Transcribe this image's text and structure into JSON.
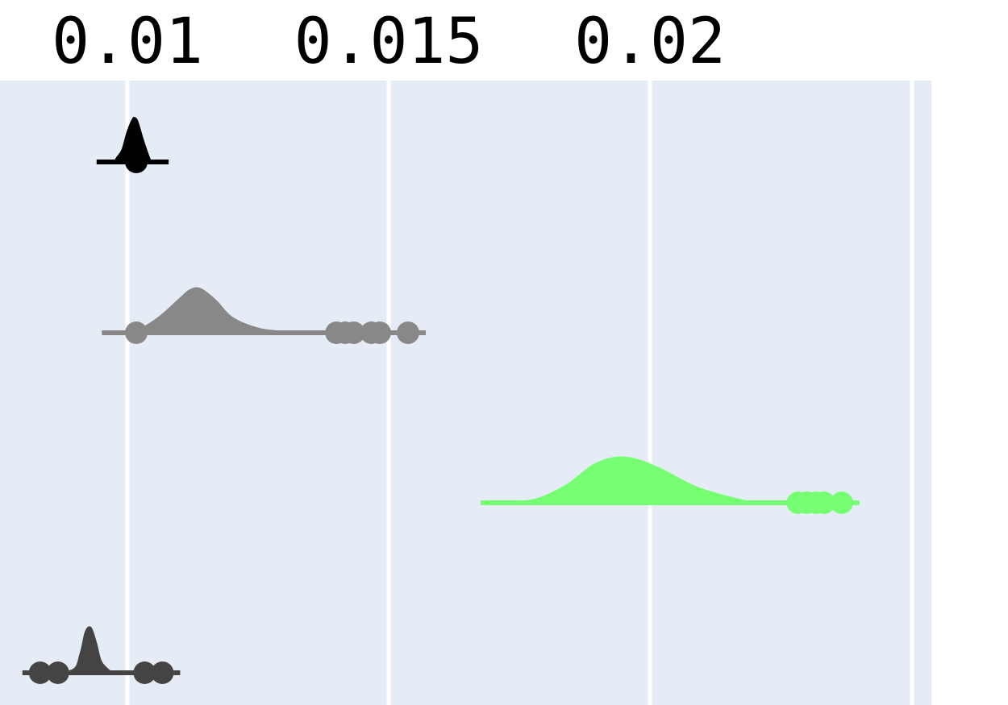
{
  "chart_data": {
    "type": "violin",
    "title": "",
    "xlabel": "",
    "ylabel": "",
    "x_axis_position": "top",
    "xlim": [
      0.0076,
      0.0231
    ],
    "x_ticks": [
      0.01,
      0.015,
      0.02
    ],
    "x_tick_labels": [
      "0.01",
      "0.015",
      "0.02"
    ],
    "grid": true,
    "background_color": "#e5ecf6",
    "legend": "none",
    "series": [
      {
        "color": "#000000",
        "density": [
          [
            0.00975,
            0.0
          ],
          [
            0.0098,
            0.08
          ],
          [
            0.0099,
            0.22
          ],
          [
            0.01,
            0.55
          ],
          [
            0.0101,
            0.78
          ],
          [
            0.01015,
            0.8
          ],
          [
            0.0102,
            0.72
          ],
          [
            0.0103,
            0.4
          ],
          [
            0.0104,
            0.12
          ],
          [
            0.01045,
            0.0
          ]
        ],
        "points": [
          0.01017
        ]
      },
      {
        "color": "#888888",
        "density": [
          [
            0.00985,
            0.0
          ],
          [
            0.0102,
            0.05
          ],
          [
            0.0106,
            0.28
          ],
          [
            0.011,
            0.62
          ],
          [
            0.0112,
            0.78
          ],
          [
            0.0114,
            0.8
          ],
          [
            0.0117,
            0.58
          ],
          [
            0.012,
            0.28
          ],
          [
            0.0125,
            0.08
          ],
          [
            0.013,
            0.02
          ],
          [
            0.01355,
            0.0
          ]
        ],
        "points": [
          0.01017,
          0.014,
          0.01417,
          0.01433,
          0.01467,
          0.01483,
          0.01537
        ]
      },
      {
        "color": "#76ff72",
        "density": [
          [
            0.0171,
            0.0
          ],
          [
            0.0178,
            0.06
          ],
          [
            0.0184,
            0.32
          ],
          [
            0.0189,
            0.68
          ],
          [
            0.0193,
            0.82
          ],
          [
            0.0197,
            0.8
          ],
          [
            0.0202,
            0.62
          ],
          [
            0.0209,
            0.28
          ],
          [
            0.0217,
            0.06
          ],
          [
            0.0221,
            0.0
          ]
        ],
        "points": [
          0.02283,
          0.023,
          0.02317,
          0.02333,
          0.02367
        ]
      },
      {
        "color": "#444444",
        "density": [
          [
            0.0084,
            0.0
          ],
          [
            0.00895,
            0.05
          ],
          [
            0.0091,
            0.35
          ],
          [
            0.0092,
            0.75
          ],
          [
            0.0093,
            0.82
          ],
          [
            0.0094,
            0.55
          ],
          [
            0.0095,
            0.2
          ],
          [
            0.0097,
            0.0
          ]
        ],
        "points": [
          0.00833,
          0.00867,
          0.01033,
          0.01067
        ]
      }
    ]
  }
}
